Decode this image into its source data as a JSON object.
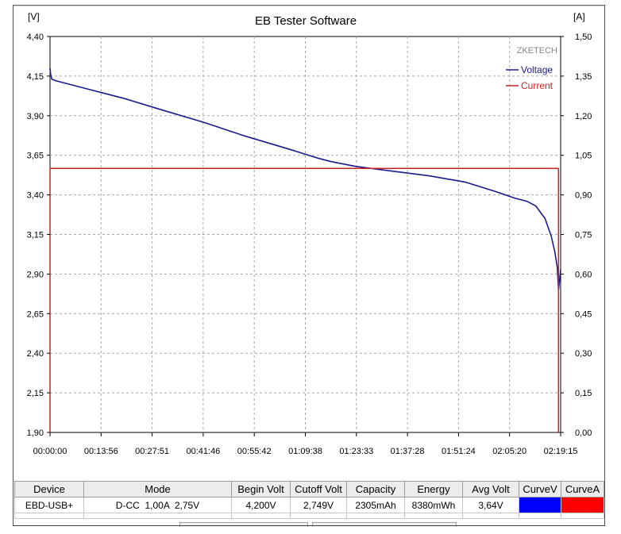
{
  "chart_data": {
    "type": "line",
    "title": "EB Tester Software",
    "brand": "ZKETECH",
    "left_unit": "[V]",
    "right_unit": "[A]",
    "y_left_range": [
      1.9,
      4.4
    ],
    "y_right_range": [
      0.0,
      1.5
    ],
    "y_left_ticks": [
      "4,40",
      "4,15",
      "3,90",
      "3,65",
      "3,40",
      "3,15",
      "2,90",
      "2,65",
      "2,40",
      "2,15",
      "1,90"
    ],
    "y_right_ticks": [
      "1,50",
      "1,35",
      "1,20",
      "1,05",
      "0,90",
      "0,75",
      "0,60",
      "0,45",
      "0,30",
      "0,15",
      "0,00"
    ],
    "x_ticks": [
      "00:00:00",
      "00:13:56",
      "00:27:51",
      "00:41:46",
      "00:55:42",
      "01:09:38",
      "01:23:33",
      "01:37:28",
      "01:51:24",
      "02:05:20",
      "02:19:15"
    ],
    "x_range_seconds": [
      0,
      8355
    ],
    "grid": true,
    "legend_position": "top-right",
    "series": [
      {
        "name": "Voltage",
        "axis": "left",
        "color": "#1a1a8c",
        "x_seconds": [
          0,
          10,
          30,
          100,
          300,
          700,
          1200,
          1800,
          2500,
          3200,
          3900,
          4400,
          4600,
          5000,
          5600,
          6200,
          6800,
          7300,
          7600,
          7800,
          7950,
          8100,
          8200,
          8260,
          8300,
          8320,
          8340,
          8355
        ],
        "values": [
          4.2,
          4.16,
          4.13,
          4.12,
          4.1,
          4.06,
          4.01,
          3.94,
          3.86,
          3.77,
          3.69,
          3.63,
          3.61,
          3.58,
          3.55,
          3.52,
          3.48,
          3.42,
          3.38,
          3.36,
          3.33,
          3.25,
          3.14,
          3.04,
          2.94,
          2.8,
          2.87,
          2.93
        ]
      },
      {
        "name": "Current",
        "axis": "right",
        "color": "#cc2222",
        "x_seconds": [
          0,
          0,
          8320,
          8320
        ],
        "values": [
          0.0,
          1.0,
          1.0,
          0.0
        ]
      }
    ]
  },
  "table": {
    "headers": [
      "Device",
      "Mode",
      "Begin Volt",
      "Cutoff Volt",
      "Capacity",
      "Energy",
      "Avg Volt",
      "CurveV",
      "CurveA"
    ],
    "row": [
      "EBD-USB+",
      "D-CC  1,00A  2,75V",
      "4,200V",
      "2,749V",
      "2305mAh",
      "8380mWh",
      "3,64V",
      "",
      ""
    ],
    "curve_colors": [
      "#0000ff",
      "#ff0000"
    ]
  }
}
